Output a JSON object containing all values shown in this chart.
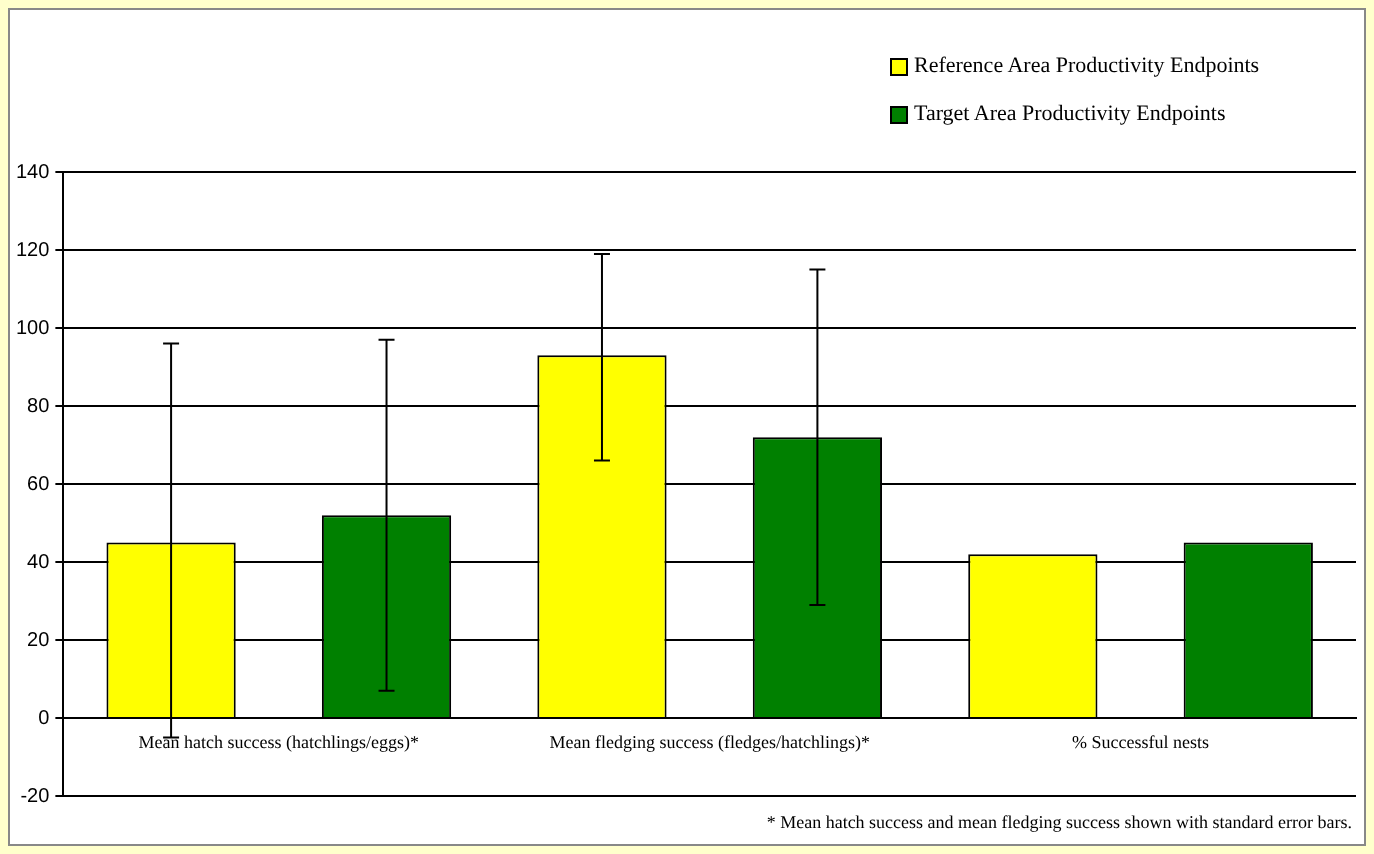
{
  "chart_data": {
    "type": "bar",
    "categories": [
      "Mean hatch success (hatchlings/eggs)*",
      "Mean fledging success (fledges/hatchlings)*",
      "% Successful nests"
    ],
    "series": [
      {
        "name": "Reference Area Productivity Endpoints",
        "color": "#ffff00",
        "values": [
          45,
          93,
          42
        ],
        "errors": [
          [
            -5,
            96
          ],
          [
            66,
            119
          ],
          null
        ]
      },
      {
        "name": "Target Area Productivity Endpoints",
        "color": "#008000",
        "values": [
          52,
          72,
          45
        ],
        "errors": [
          [
            7,
            97
          ],
          [
            29,
            115
          ],
          null
        ]
      }
    ],
    "ylim": [
      -20,
      140
    ],
    "yticks": [
      -20,
      0,
      20,
      40,
      60,
      80,
      100,
      120,
      140
    ],
    "grid": "y",
    "legend": "top right",
    "annotations": [
      "* Mean hatch success and mean fledging success shown with standard error bars."
    ]
  }
}
